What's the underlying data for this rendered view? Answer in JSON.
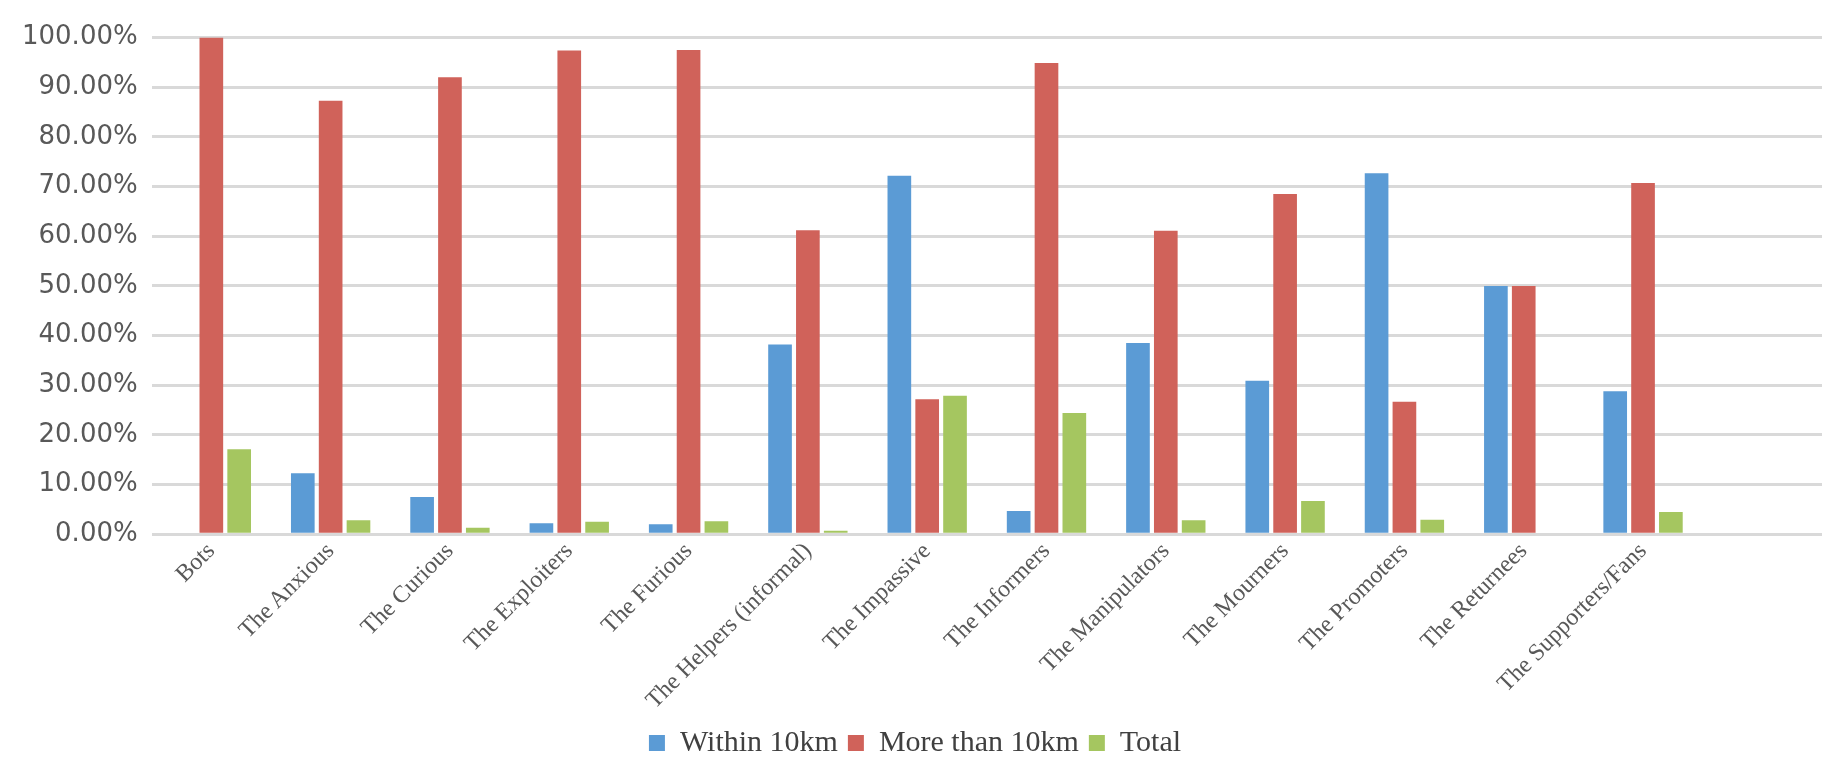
{
  "chart_data": {
    "type": "bar",
    "categories": [
      "Bots",
      "The Anxious",
      "The Curious",
      "The Exploiters",
      "The Furious",
      "The Helpers (informal)",
      "The Impassive",
      "The Informers",
      "The Manipulators",
      "The Mourners",
      "The Promoters",
      "The Returnees",
      "The Supporters/Fans",
      null
    ],
    "series": [
      {
        "name": "Within 10km",
        "color": "#5b9bd5",
        "values": [
          0,
          12.3,
          7.5,
          2.2,
          2.0,
          38.2,
          72.2,
          4.7,
          38.5,
          30.9,
          72.7,
          50,
          28.8,
          null
        ]
      },
      {
        "name": "More than 10km",
        "color": "#d0625a",
        "values": [
          100,
          87.3,
          92.0,
          97.4,
          97.5,
          61.2,
          27.2,
          94.9,
          61.1,
          68.5,
          26.7,
          50,
          70.7,
          null
        ]
      },
      {
        "name": "Total",
        "color": "#a5c660",
        "values": [
          17.1,
          2.8,
          1.3,
          2.5,
          2.6,
          0.7,
          27.9,
          24.4,
          2.8,
          6.7,
          2.9,
          0,
          4.5,
          null
        ]
      }
    ],
    "ylim": [
      0,
      100
    ],
    "yticks": [
      {
        "value": 0,
        "label": "0.00%"
      },
      {
        "value": 10,
        "label": "10.00%"
      },
      {
        "value": 20,
        "label": "20.00%"
      },
      {
        "value": 30,
        "label": "30.00%"
      },
      {
        "value": 40,
        "label": "40.00%"
      },
      {
        "value": 50,
        "label": "50.00%"
      },
      {
        "value": 60,
        "label": "60.00%"
      },
      {
        "value": 70,
        "label": "70.00%"
      },
      {
        "value": 80,
        "label": "80.00%"
      },
      {
        "value": 90,
        "label": "90.00%"
      },
      {
        "value": 100,
        "label": "100.00%"
      }
    ],
    "grid": "y",
    "legend": "bottom"
  }
}
